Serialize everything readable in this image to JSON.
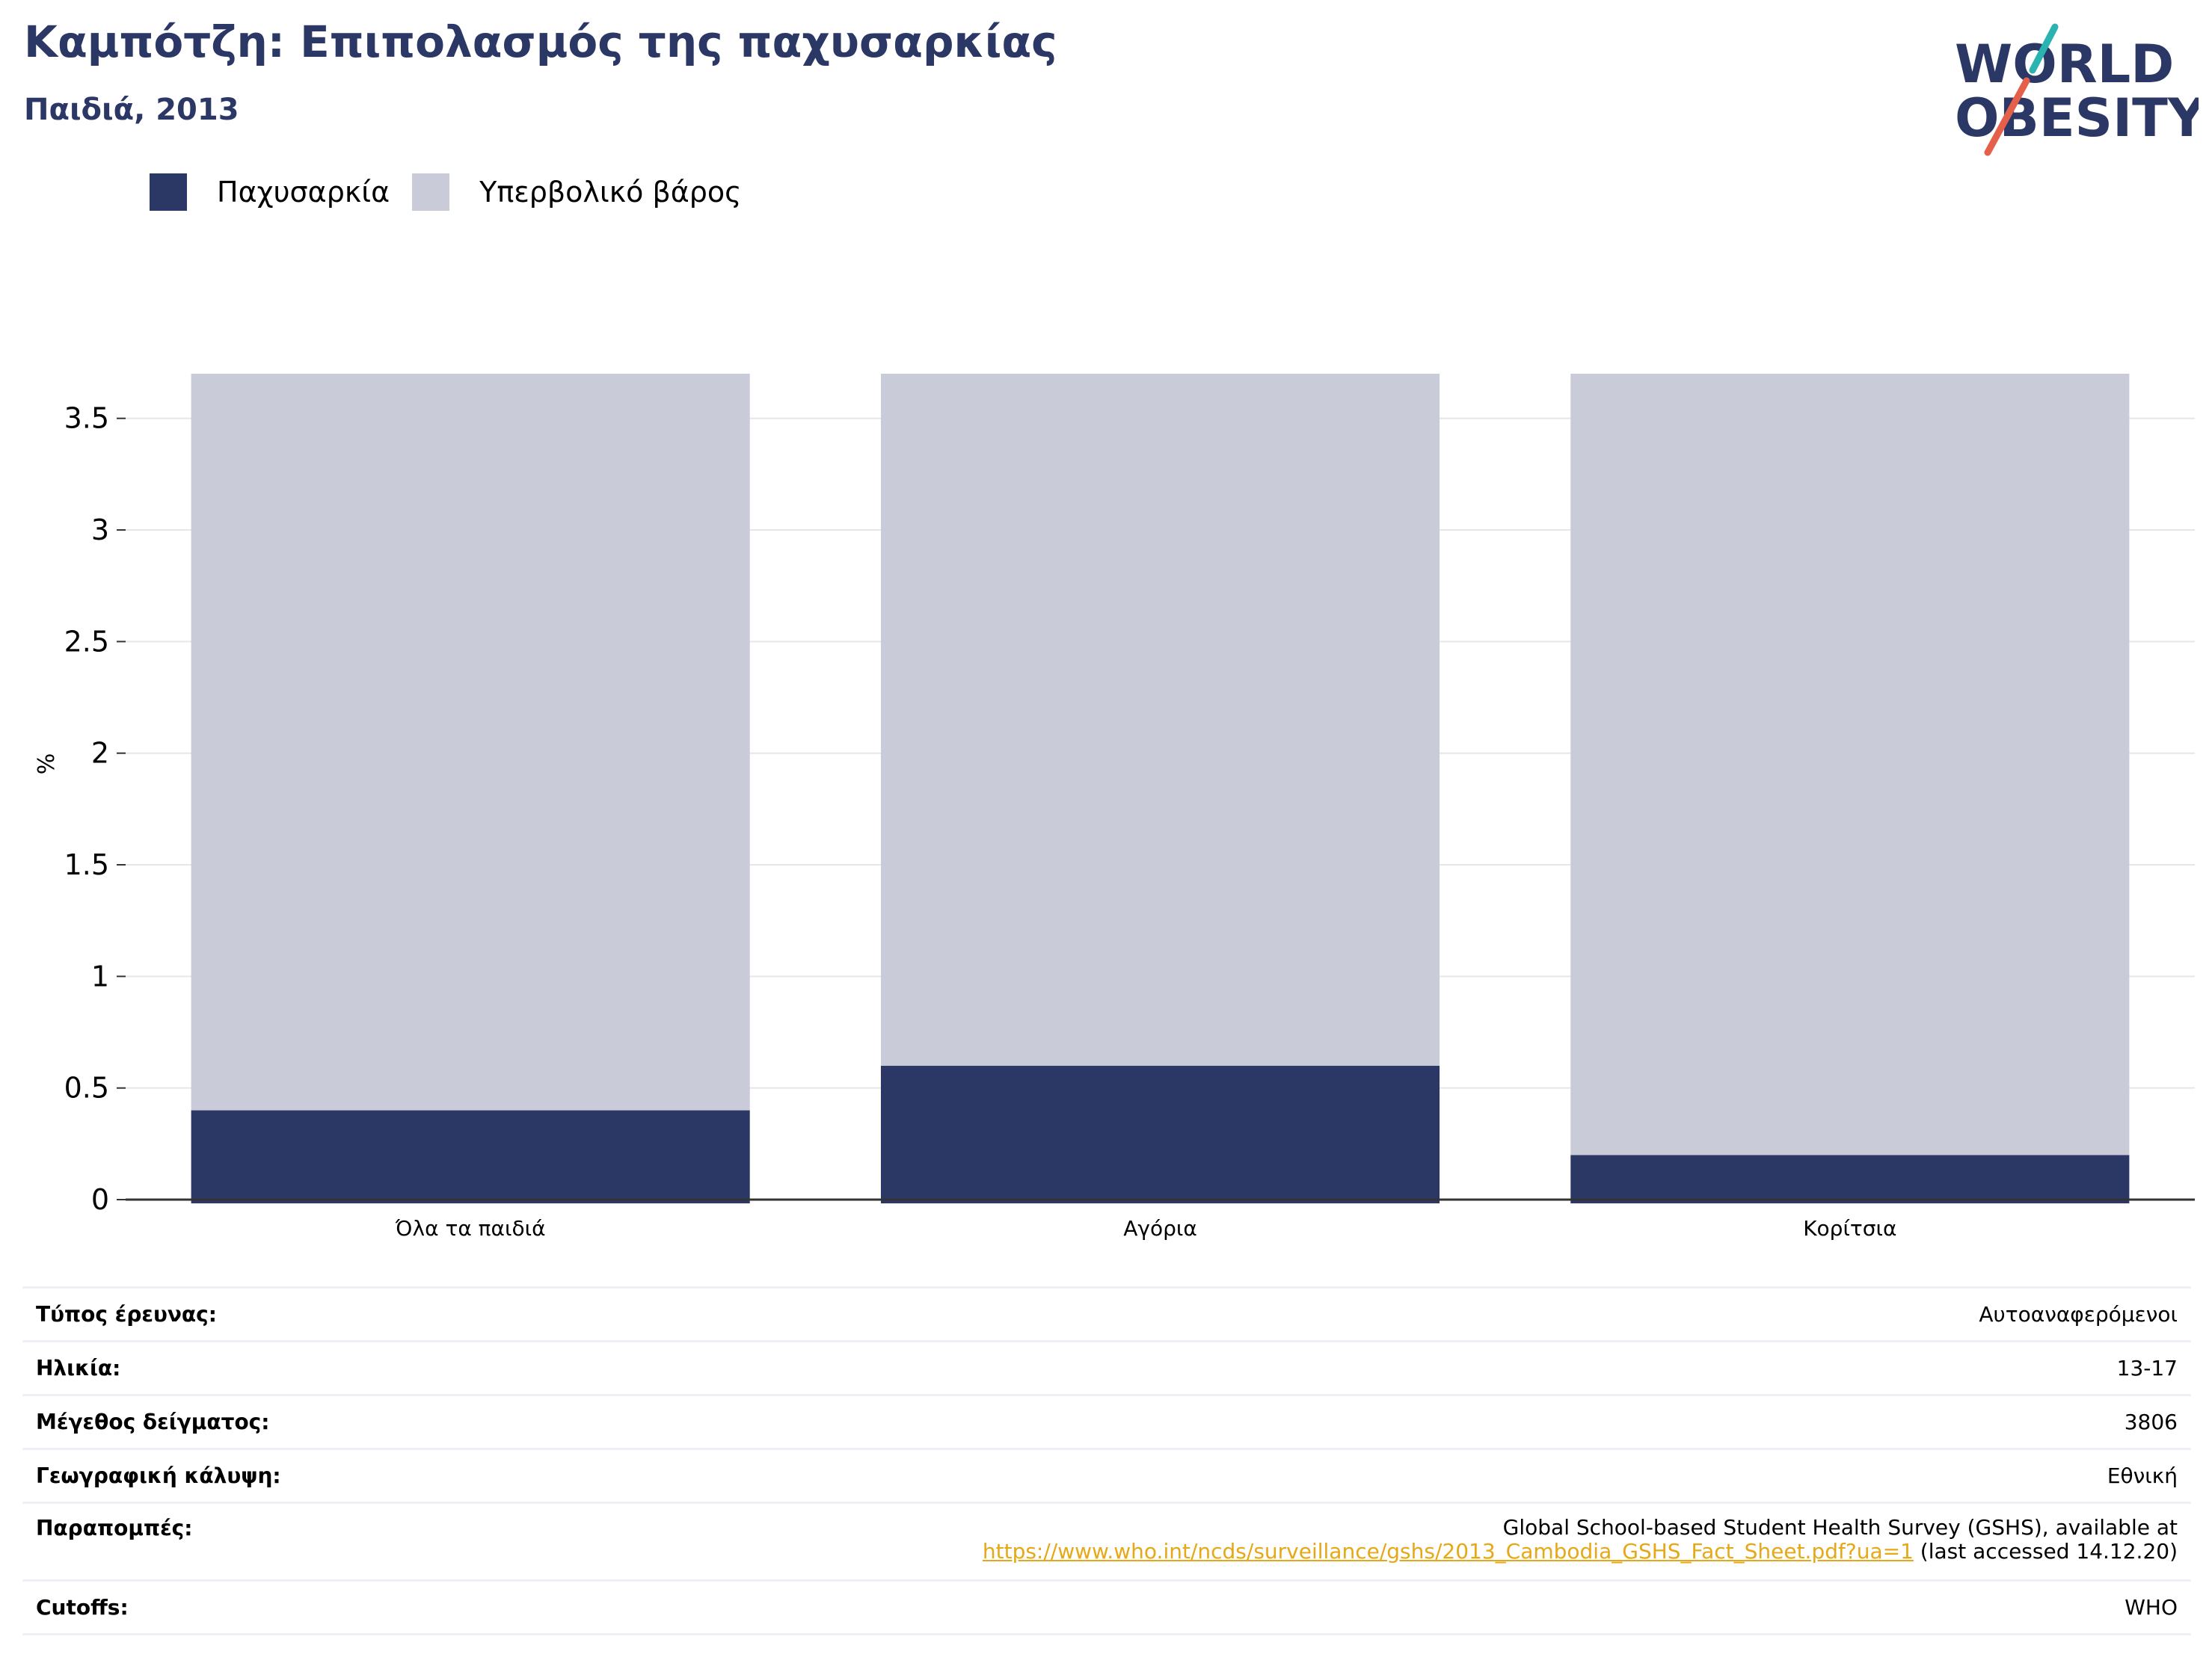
{
  "title": "Καμπότζη: Επιπολασμός της παχυσαρκίας",
  "subtitle": "Παιδιά, 2013",
  "logo": {
    "line1": "WORLD",
    "line2": "OBESITY"
  },
  "colors": {
    "obesity": "#2b3764",
    "overweight": "#c9cbd8",
    "accent_teal": "#2ab3b1",
    "accent_red": "#e5604a",
    "link": "#e6a817"
  },
  "chart_data": {
    "type": "bar",
    "stacked": true,
    "categories": [
      "Όλα τα παιδιά",
      "Αγόρια",
      "Κορίτσια"
    ],
    "series": [
      {
        "name": "Παχυσαρκία",
        "values": [
          0.4,
          0.6,
          0.2
        ],
        "color": "#2b3764"
      },
      {
        "name": "Υπερβολικό βάρος",
        "values": [
          3.3,
          3.1,
          3.5
        ],
        "color": "#c9cbd8"
      }
    ],
    "ylabel": "%",
    "xlabel": "",
    "yticks": [
      "0",
      "0.5",
      "1",
      "1.5",
      "2",
      "2.5",
      "3",
      "3.5"
    ],
    "ylim": [
      0,
      3.7
    ],
    "grid": true,
    "legend_position": "top-left"
  },
  "meta": {
    "survey_type": {
      "label": "Τύπος έρευνας:",
      "value": "Αυτοαναφερόμενοι"
    },
    "age": {
      "label": "Ηλικία:",
      "value": "13-17"
    },
    "sample_size": {
      "label": "Μέγεθος δείγματος:",
      "value": "3806"
    },
    "coverage": {
      "label": "Γεωγραφική κάλυψη:",
      "value": "Εθνική"
    },
    "references": {
      "label": "Παραπομπές:",
      "line1": "Global School-based Student Health Survey (GSHS), available at",
      "link": "https://www.who.int/ncds/surveillance/gshs/2013_Cambodia_GSHS_Fact_Sheet.pdf?ua=1",
      "suffix": " (last accessed 14.12.20)"
    },
    "cutoffs": {
      "label": "Cutoffs:",
      "value": "WHO"
    }
  }
}
